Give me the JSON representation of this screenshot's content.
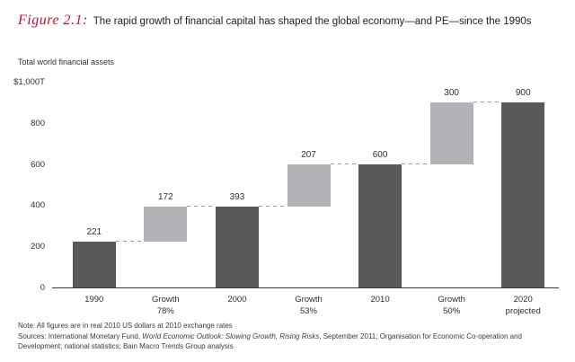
{
  "figure": {
    "label": "Figure 2.1:",
    "title": "The rapid growth of financial capital has shaped the global economy—and PE—since the 1990s"
  },
  "axis_title": "Total world financial assets",
  "chart_data": {
    "type": "bar",
    "variant": "waterfall",
    "title": "Total world financial assets",
    "xlabel": "",
    "ylabel": "Total world financial assets ($T, real 2010 US dollars)",
    "ylim": [
      0,
      1000
    ],
    "grid": false,
    "legend": null,
    "yticks": [
      {
        "value": 0,
        "label": "0"
      },
      {
        "value": 200,
        "label": "200"
      },
      {
        "value": 400,
        "label": "400"
      },
      {
        "value": 600,
        "label": "600"
      },
      {
        "value": 800,
        "label": "800"
      },
      {
        "value": 1000,
        "label": "$1,000T"
      }
    ],
    "bars": [
      {
        "category": [
          "1990"
        ],
        "start": 0,
        "end": 221,
        "value_label": "221",
        "kind": "total"
      },
      {
        "category": [
          "Growth",
          "78%"
        ],
        "start": 221,
        "end": 393,
        "value_label": "172",
        "kind": "growth"
      },
      {
        "category": [
          "2000"
        ],
        "start": 0,
        "end": 393,
        "value_label": "393",
        "kind": "total"
      },
      {
        "category": [
          "Growth",
          "53%"
        ],
        "start": 393,
        "end": 600,
        "value_label": "207",
        "kind": "growth"
      },
      {
        "category": [
          "2010"
        ],
        "start": 0,
        "end": 600,
        "value_label": "600",
        "kind": "total"
      },
      {
        "category": [
          "Growth",
          "50%"
        ],
        "start": 600,
        "end": 900,
        "value_label": "300",
        "kind": "growth"
      },
      {
        "category": [
          "2020",
          "projected"
        ],
        "start": 0,
        "end": 900,
        "value_label": "900",
        "kind": "total"
      }
    ],
    "colors": {
      "total": "#58595b",
      "growth": "#b1b3b6",
      "connector": "#97999b",
      "baseline": "#3a3a3c",
      "accent_red": "#c8102e"
    }
  },
  "notes": {
    "line1": "Note: All figures are in real 2010 US dollars at 2010 exchange rates",
    "sources_segments": [
      {
        "text": "Sources: International Monetary Fund, ",
        "italic": false
      },
      {
        "text": "World Economic Outlook: Slowing Growth, Rising Risks",
        "italic": true
      },
      {
        "text": ", September 2011; Organisation for Economic Co-operation and Development; national statistics; Bain Macro Trends Group analysis",
        "italic": false
      }
    ]
  }
}
